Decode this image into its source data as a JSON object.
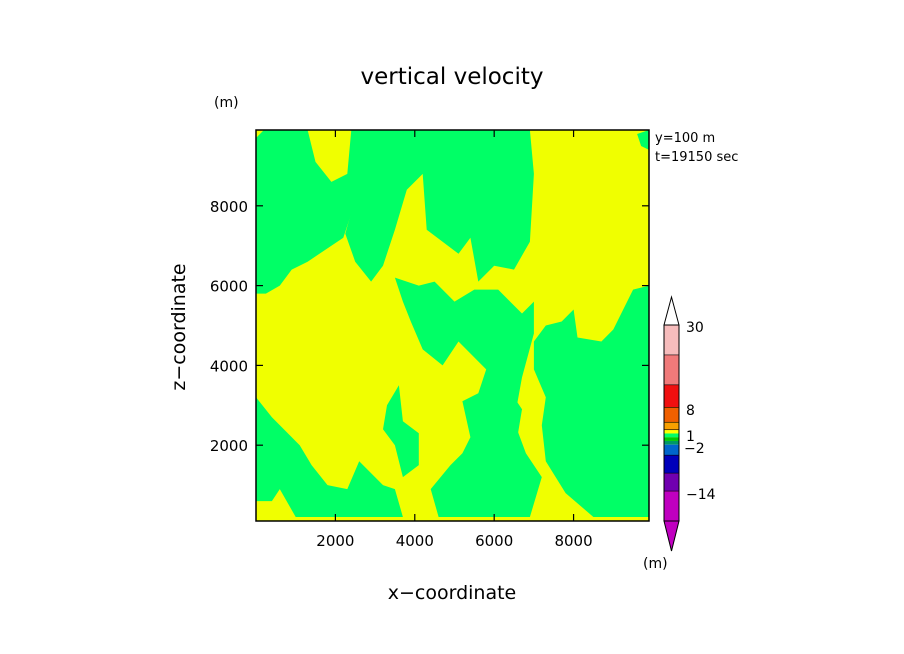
{
  "chart_data": {
    "type": "heatmap",
    "title": "vertical velocity",
    "xlabel": "x−coordinate",
    "ylabel": "z−coordinate",
    "x_unit": "(m)",
    "y_unit": "(m)",
    "annotations": [
      "y=100 m",
      "t=19150 sec"
    ],
    "xlim": [
      0,
      9900
    ],
    "ylim": [
      100,
      9900
    ],
    "x_ticks": [
      2000,
      4000,
      6000,
      8000
    ],
    "y_ticks": [
      2000,
      4000,
      6000,
      8000
    ],
    "x_tick_labels": [
      "2000",
      "4000",
      "6000",
      "8000"
    ],
    "y_tick_labels": [
      "2000",
      "4000",
      "6000",
      "8000"
    ],
    "field_levels": {
      "negative": {
        "color": "#00ff66",
        "range": "-2 to 0"
      },
      "positive": {
        "color": "#f0ff00",
        "range": "0 to 1"
      }
    },
    "field_regions": [
      {
        "level": "negative",
        "points": [
          [
            0,
            9700
          ],
          [
            200,
            9900
          ],
          [
            1300,
            9900
          ],
          [
            1500,
            9100
          ],
          [
            1900,
            8600
          ],
          [
            2300,
            8800
          ],
          [
            2400,
            9900
          ],
          [
            3100,
            9900
          ],
          [
            2600,
            8400
          ],
          [
            2200,
            7200
          ],
          [
            1300,
            6600
          ],
          [
            900,
            6400
          ],
          [
            600,
            6000
          ],
          [
            250,
            5800
          ],
          [
            0,
            5800
          ]
        ]
      },
      {
        "level": "negative",
        "points": [
          [
            2400,
            9900
          ],
          [
            3000,
            9900
          ],
          [
            2850,
            9200
          ],
          [
            2500,
            8200
          ],
          [
            2250,
            7300
          ],
          [
            2500,
            6600
          ],
          [
            2900,
            6100
          ],
          [
            3200,
            6500
          ],
          [
            3500,
            7400
          ],
          [
            3800,
            8400
          ],
          [
            4200,
            8800
          ],
          [
            4300,
            7400
          ],
          [
            5100,
            6800
          ],
          [
            5400,
            7200
          ],
          [
            5600,
            6100
          ],
          [
            6000,
            6500
          ],
          [
            6500,
            6400
          ],
          [
            6900,
            7100
          ],
          [
            7000,
            8800
          ],
          [
            6900,
            9900
          ]
        ]
      },
      {
        "level": "negative",
        "points": [
          [
            3500,
            6200
          ],
          [
            4100,
            6000
          ],
          [
            4500,
            6100
          ],
          [
            5000,
            5600
          ],
          [
            5500,
            5900
          ],
          [
            6100,
            5900
          ],
          [
            6700,
            5300
          ],
          [
            7000,
            5600
          ],
          [
            7000,
            4800
          ],
          [
            6700,
            3700
          ],
          [
            6500,
            2600
          ],
          [
            6800,
            1800
          ],
          [
            7200,
            1200
          ],
          [
            6900,
            200
          ],
          [
            4600,
            200
          ],
          [
            4400,
            900
          ],
          [
            4900,
            1500
          ],
          [
            5200,
            1800
          ],
          [
            5400,
            2200
          ],
          [
            5200,
            3100
          ],
          [
            5600,
            3300
          ],
          [
            5800,
            3900
          ],
          [
            5100,
            4600
          ],
          [
            4700,
            4000
          ],
          [
            4200,
            4400
          ],
          [
            3900,
            5100
          ],
          [
            3700,
            5600
          ]
        ]
      },
      {
        "level": "negative",
        "points": [
          [
            7000,
            4600
          ],
          [
            7300,
            5000
          ],
          [
            7700,
            5100
          ],
          [
            8000,
            5400
          ],
          [
            8100,
            4700
          ],
          [
            8700,
            4600
          ],
          [
            9000,
            4900
          ],
          [
            9500,
            5900
          ],
          [
            9900,
            6000
          ],
          [
            9900,
            200
          ],
          [
            8500,
            200
          ],
          [
            7800,
            800
          ],
          [
            7300,
            1600
          ],
          [
            7200,
            2500
          ],
          [
            7300,
            3200
          ],
          [
            7000,
            3900
          ]
        ]
      },
      {
        "level": "negative",
        "points": [
          [
            0,
            3200
          ],
          [
            400,
            2700
          ],
          [
            800,
            2300
          ],
          [
            1100,
            2000
          ],
          [
            1400,
            1500
          ],
          [
            1800,
            1000
          ],
          [
            2300,
            900
          ],
          [
            2600,
            1600
          ],
          [
            3200,
            1000
          ],
          [
            3500,
            900
          ],
          [
            3700,
            200
          ],
          [
            1000,
            200
          ],
          [
            600,
            900
          ],
          [
            400,
            600
          ],
          [
            0,
            600
          ]
        ]
      },
      {
        "level": "negative",
        "points": [
          [
            3300,
            3000
          ],
          [
            3600,
            3500
          ],
          [
            3700,
            2600
          ],
          [
            4100,
            2300
          ],
          [
            4100,
            1500
          ],
          [
            3700,
            1200
          ],
          [
            3500,
            2000
          ],
          [
            3200,
            2400
          ]
        ]
      },
      {
        "level": "negative",
        "points": [
          [
            9000,
            3900
          ],
          [
            9300,
            4100
          ],
          [
            9500,
            4700
          ],
          [
            9700,
            3600
          ],
          [
            9400,
            3100
          ],
          [
            9200,
            3300
          ]
        ]
      },
      {
        "level": "negative",
        "points": [
          [
            8000,
            3400
          ],
          [
            8200,
            3700
          ],
          [
            8400,
            3400
          ],
          [
            8500,
            2600
          ],
          [
            8200,
            2200
          ],
          [
            7900,
            2700
          ]
        ]
      },
      {
        "level": "negative",
        "points": [
          [
            600,
            8000
          ],
          [
            800,
            8300
          ],
          [
            1100,
            8400
          ],
          [
            1300,
            8000
          ],
          [
            1000,
            7700
          ],
          [
            700,
            7700
          ]
        ]
      },
      {
        "level": "negative",
        "points": [
          [
            6200,
            2700
          ],
          [
            6500,
            3200
          ],
          [
            6700,
            2900
          ],
          [
            6600,
            2300
          ],
          [
            6300,
            2300
          ]
        ]
      },
      {
        "level": "negative",
        "points": [
          [
            9900,
            9900
          ],
          [
            9900,
            9400
          ],
          [
            9700,
            9500
          ],
          [
            9600,
            9800
          ]
        ]
      }
    ],
    "colorbar": {
      "unit": "(m)",
      "tick_labels": [
        "30",
        "8",
        "1",
        "−2",
        "−14"
      ],
      "bins_top_to_bottom": [
        {
          "color": "#f6bcbc",
          "weight": 2
        },
        {
          "color": "#f07a7a",
          "weight": 2
        },
        {
          "color": "#f01010",
          "weight": 1.5
        },
        {
          "color": "#f06000",
          "weight": 1
        },
        {
          "color": "#f8a000",
          "weight": 0.5
        },
        {
          "color": "#ffff00",
          "weight": 0.25
        },
        {
          "color": "#00ff66",
          "weight": 0.25
        },
        {
          "color": "#00cc00",
          "weight": 0.25
        },
        {
          "color": "#009966",
          "weight": 0.25
        },
        {
          "color": "#0066cc",
          "weight": 0.7
        },
        {
          "color": "#0000bb",
          "weight": 1.2
        },
        {
          "color": "#7000b0",
          "weight": 1.2
        },
        {
          "color": "#c000c0",
          "weight": 2
        }
      ],
      "top_arrow_color": "#ffffff",
      "bottom_arrow_color": "#c000c0"
    }
  }
}
